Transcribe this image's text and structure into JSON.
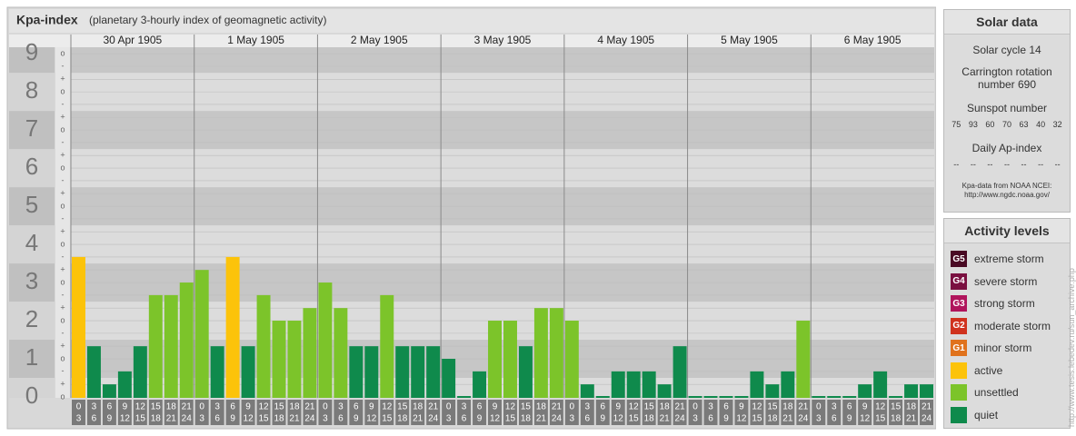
{
  "chart_data": {
    "type": "bar",
    "title": "Kpa-index",
    "subtitle": "(planetary 3-hourly index of geomagnetic activity)",
    "days": [
      "30 Apr 1905",
      "1 May 1905",
      "2 May 1905",
      "3 May 1905",
      "4 May 1905",
      "5 May 1905",
      "6 May 1905"
    ],
    "intervals": [
      {
        "from": "0",
        "to": "3"
      },
      {
        "from": "3",
        "to": "6"
      },
      {
        "from": "6",
        "to": "9"
      },
      {
        "from": "9",
        "to": "12"
      },
      {
        "from": "12",
        "to": "15"
      },
      {
        "from": "15",
        "to": "18"
      },
      {
        "from": "18",
        "to": "21"
      },
      {
        "from": "21",
        "to": "24"
      }
    ],
    "values": [
      3.67,
      1.33,
      0.33,
      0.67,
      1.33,
      2.67,
      2.67,
      3,
      3.33,
      1.33,
      3.67,
      1.33,
      2.67,
      2,
      2,
      2.33,
      3,
      2.33,
      1.33,
      1.33,
      2.67,
      1.33,
      1.33,
      1.33,
      1,
      0,
      0.67,
      2,
      2,
      1.33,
      2.33,
      2.33,
      2,
      0.33,
      0,
      0.67,
      0.67,
      0.67,
      0.33,
      1.33,
      0,
      0,
      0,
      0,
      0.67,
      0.33,
      0.67,
      2,
      0,
      0,
      0,
      0.33,
      0.67,
      0,
      0.33,
      0.33
    ],
    "ylim": [
      0,
      9.17
    ],
    "yticks": [
      0,
      1,
      2,
      3,
      4,
      5,
      6,
      7,
      8,
      9
    ],
    "minor_ticks": [
      {
        "value": 0,
        "label": "o"
      },
      {
        "value": 0.33,
        "label": "+"
      },
      {
        "value": 0.67,
        "label": "-"
      },
      {
        "value": 1,
        "label": "o"
      },
      {
        "value": 1.33,
        "label": "+"
      },
      {
        "value": 1.67,
        "label": "-"
      },
      {
        "value": 2,
        "label": "o"
      },
      {
        "value": 2.33,
        "label": "+"
      },
      {
        "value": 2.67,
        "label": "-"
      },
      {
        "value": 3,
        "label": "o"
      },
      {
        "value": 3.33,
        "label": "+"
      },
      {
        "value": 3.67,
        "label": "-"
      },
      {
        "value": 4,
        "label": "o"
      },
      {
        "value": 4.33,
        "label": "+"
      },
      {
        "value": 4.67,
        "label": "-"
      },
      {
        "value": 5,
        "label": "o"
      },
      {
        "value": 5.33,
        "label": "+"
      },
      {
        "value": 5.67,
        "label": "-"
      },
      {
        "value": 6,
        "label": "o"
      },
      {
        "value": 6.33,
        "label": "+"
      },
      {
        "value": 6.67,
        "label": "-"
      },
      {
        "value": 7,
        "label": "o"
      },
      {
        "value": 7.33,
        "label": "+"
      },
      {
        "value": 7.67,
        "label": "-"
      },
      {
        "value": 8,
        "label": "o"
      },
      {
        "value": 8.33,
        "label": "+"
      },
      {
        "value": 8.67,
        "label": "-"
      },
      {
        "value": 9,
        "label": "o"
      }
    ],
    "grid": true,
    "levels": [
      {
        "code": "G5",
        "name": "extreme storm",
        "color": "#4a0a24",
        "min": 8.67
      },
      {
        "code": "G4",
        "name": "severe storm",
        "color": "#7a1040",
        "min": 7.67
      },
      {
        "code": "G3",
        "name": "strong storm",
        "color": "#b0145c",
        "min": 6.67
      },
      {
        "code": "G2",
        "name": "moderate storm",
        "color": "#d0321e",
        "min": 5.67
      },
      {
        "code": "G1",
        "name": "minor storm",
        "color": "#e0721c",
        "min": 4.67
      },
      {
        "name": "active",
        "color": "#fcc30a",
        "min": 3.67
      },
      {
        "name": "unsettled",
        "color": "#7cc42a",
        "min": 2
      },
      {
        "name": "quiet",
        "color": "#0f8a4c",
        "min": 0
      }
    ]
  },
  "solar_data": {
    "title": "Solar data",
    "cycle": "Solar cycle 14",
    "carrington": "Carrington rotation number 690",
    "sunspot_title": "Sunspot number",
    "sunspots": [
      75,
      93,
      60,
      70,
      63,
      40,
      32
    ],
    "ap_title": "Daily Ap-index",
    "ap": [
      "--",
      "--",
      "--",
      "--",
      "--",
      "--",
      "--"
    ],
    "source": "Kpa-data from NOAA NCEI: http://www.ngdc.noaa.gov/"
  },
  "legend_title": "Activity levels",
  "watermark": "http://www.tesis.lebedev.ru/sun_archive.php"
}
